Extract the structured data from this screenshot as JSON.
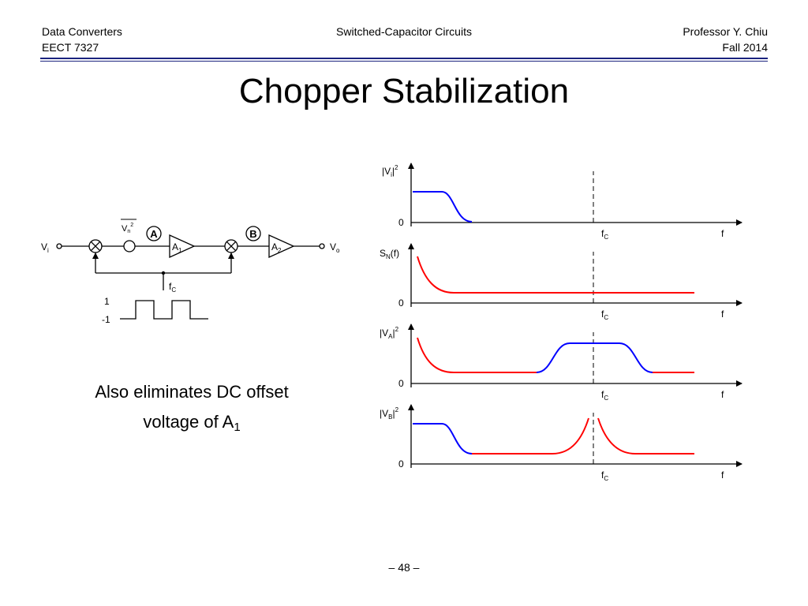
{
  "header": {
    "course": "Data Converters",
    "course_code": "EECT 7327",
    "topic": "Switched-Capacitor Circuits",
    "instructor": "Professor Y. Chiu",
    "term": "Fall 2014"
  },
  "title": "Chopper Stabilization",
  "note": {
    "text": "Also eliminates DC offset voltage of A",
    "subscript": "1"
  },
  "footer": {
    "page": "– 48 –"
  },
  "circuit": {
    "input": {
      "base": "V",
      "sub": "i"
    },
    "output": {
      "base": "V",
      "sub": "o"
    },
    "noise": {
      "base": "V",
      "sub": "n",
      "sup": "2"
    },
    "node_a": "A",
    "node_b": "B",
    "amp1": {
      "base": "A",
      "sub": "1"
    },
    "amp2": {
      "base": "A",
      "sub": "2"
    },
    "clock": {
      "base": "f",
      "sub": "C"
    },
    "level_high": "1",
    "level_low": "-1"
  },
  "plots": [
    {
      "ylabel": {
        "base": "|V",
        "sub": "i",
        "tail": "|",
        "sup": "2"
      },
      "zero": "0",
      "fc": {
        "base": "f",
        "sub": "C"
      },
      "f": "f"
    },
    {
      "ylabel": {
        "base": "S",
        "sub": "N",
        "tail": "(f)",
        "sup": ""
      },
      "zero": "0",
      "fc": {
        "base": "f",
        "sub": "C"
      },
      "f": "f"
    },
    {
      "ylabel": {
        "base": "|V",
        "sub": "A",
        "tail": "|",
        "sup": "2"
      },
      "zero": "0",
      "fc": {
        "base": "f",
        "sub": "C"
      },
      "f": "f"
    },
    {
      "ylabel": {
        "base": "|V",
        "sub": "B",
        "tail": "|",
        "sup": "2"
      },
      "zero": "0",
      "fc": {
        "base": "f",
        "sub": "C"
      },
      "f": "f"
    }
  ],
  "colors": {
    "signal": "#0000ff",
    "noise": "#ff0000",
    "header_rule": "#1a237e"
  }
}
